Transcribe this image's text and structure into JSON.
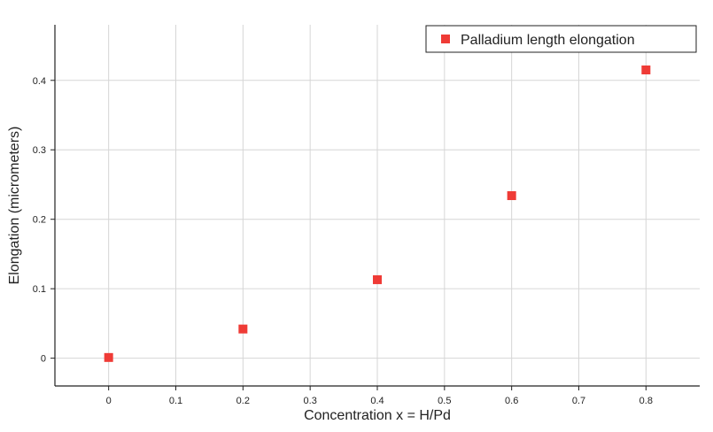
{
  "chart_data": {
    "type": "scatter",
    "title": "",
    "xlabel": "Concentration x = H/Pd",
    "ylabel": "Elongation (micrometers)",
    "xlim": [
      -0.08,
      0.88
    ],
    "ylim": [
      -0.04,
      0.48
    ],
    "x_ticks": [
      0,
      0.1,
      0.2,
      0.3,
      0.4,
      0.5,
      0.6,
      0.7,
      0.8
    ],
    "y_ticks": [
      0,
      0.1,
      0.2,
      0.3,
      0.4
    ],
    "grid": true,
    "legend_position": "top-right",
    "series": [
      {
        "name": "Palladium length elongation",
        "color": "#ef3b36",
        "marker": "square",
        "x": [
          0,
          0.2,
          0.4,
          0.6,
          0.8
        ],
        "y": [
          0.001,
          0.042,
          0.113,
          0.234,
          0.415
        ]
      }
    ]
  }
}
